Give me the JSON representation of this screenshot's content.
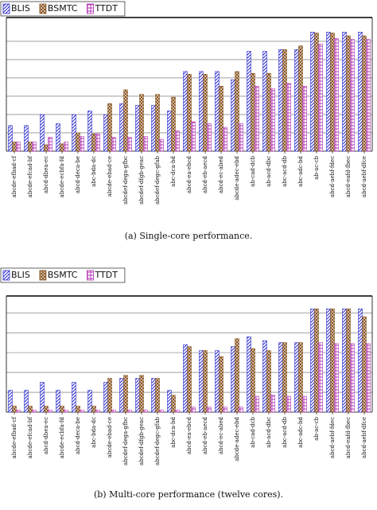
{
  "chart_data": [
    {
      "type": "bar",
      "caption": "(a) Single-core performance.",
      "categories": [
        "abcde-efbad-cf",
        "abcde-efcad-bf",
        "abcd-dbea-ec",
        "abcde-ecbfa-fd",
        "abcd-deca-be",
        "abc-bda-dc",
        "abcde-ebad-ce",
        "abcdef-dega-gfbc",
        "abcdef-dfgb-geac",
        "abcdef-degc-gfab",
        "abc-dca-bd",
        "abcd-ea-ebcd",
        "abcd-eb-aecd",
        "abcd-ec-abed",
        "abcde-adec-ebd",
        "ab-cad-dcb",
        "ab-acd-dbc",
        "abc-acd-db",
        "abc-adc-bd",
        "ab-ac-cb",
        "abcd-aebf-fdec",
        "abcd-eafd-fbec",
        "abcd-aebf-dfce"
      ],
      "series": [
        {
          "name": "BLIS",
          "color": "#3030d0",
          "values": [
            1.4,
            1.4,
            2.0,
            1.5,
            2.0,
            2.2,
            2.0,
            2.6,
            2.5,
            2.5,
            2.2,
            4.35,
            4.35,
            4.35,
            3.9,
            5.45,
            5.45,
            5.55,
            5.55,
            6.5,
            6.5,
            6.5,
            6.5
          ]
        },
        {
          "name": "BSMTC",
          "color": "#8a5522",
          "values": [
            0.5,
            0.5,
            0.35,
            0.4,
            1.0,
            0.95,
            2.6,
            3.35,
            3.1,
            3.1,
            2.95,
            4.2,
            4.2,
            3.55,
            4.35,
            4.25,
            4.25,
            5.55,
            5.75,
            6.45,
            6.45,
            6.3,
            6.3
          ]
        },
        {
          "name": "TTDT",
          "color": "#b030b0",
          "values": [
            0.5,
            0.5,
            0.75,
            0.5,
            0.8,
            0.95,
            0.75,
            0.75,
            0.8,
            0.65,
            1.1,
            1.6,
            1.5,
            1.3,
            1.5,
            3.55,
            3.4,
            3.7,
            3.55,
            5.85,
            6.15,
            6.1,
            6.1
          ]
        }
      ],
      "ylim": [
        0,
        7.3
      ],
      "yticks": [
        1,
        2,
        3,
        4,
        5,
        6
      ],
      "grid": true
    },
    {
      "type": "bar",
      "caption": "(b) Multi-core performance (twelve cores).",
      "categories": [
        "abcde-efbad-cf",
        "abcde-efcad-bf",
        "abcd-dbea-ec",
        "abcde-ecbfa-fd",
        "abcd-deca-be",
        "abc-bda-dc",
        "abcde-ebad-ce",
        "abcdef-dega-gfbc",
        "abcdef-dfgb-geac",
        "abcdef-degc-gfab",
        "abc-dca-bd",
        "abcd-ea-ebcd",
        "abcd-eb-aecd",
        "abcd-ec-abed",
        "abcde-adec-ebd",
        "ab-cad-dcb",
        "ab-acd-dbc",
        "abc-acd-db",
        "abc-adc-bd",
        "ab-ac-cb",
        "abcd-aebf-fdec",
        "abcd-eafd-fbec",
        "abcd-aebf-dfce"
      ],
      "series": [
        {
          "name": "BLIS",
          "color": "#3030d0",
          "values": [
            1.1,
            1.1,
            1.5,
            1.1,
            1.5,
            1.1,
            1.5,
            1.7,
            1.7,
            1.7,
            1.1,
            3.4,
            3.1,
            3.1,
            3.3,
            3.8,
            3.6,
            3.5,
            3.5,
            5.2,
            5.2,
            5.2,
            5.2
          ]
        },
        {
          "name": "BSMTC",
          "color": "#8a5522",
          "values": [
            0.3,
            0.3,
            0.3,
            0.3,
            0.3,
            0.3,
            1.7,
            1.85,
            1.85,
            1.7,
            0.85,
            3.3,
            3.1,
            2.8,
            3.7,
            3.2,
            3.1,
            3.5,
            3.5,
            5.2,
            5.2,
            5.2,
            4.8
          ]
        },
        {
          "name": "TTDT",
          "color": "#b030b0",
          "values": [
            0.1,
            0.1,
            0.1,
            0.1,
            0.1,
            0.1,
            0.1,
            0.1,
            0.1,
            0.1,
            0.1,
            0.25,
            0.25,
            0.25,
            0.25,
            0.8,
            0.85,
            0.8,
            0.8,
            3.5,
            3.45,
            3.45,
            3.45
          ]
        }
      ],
      "ylim": [
        0,
        5.85
      ],
      "yticks": [
        1,
        2,
        3,
        4,
        5
      ],
      "grid": true
    }
  ]
}
